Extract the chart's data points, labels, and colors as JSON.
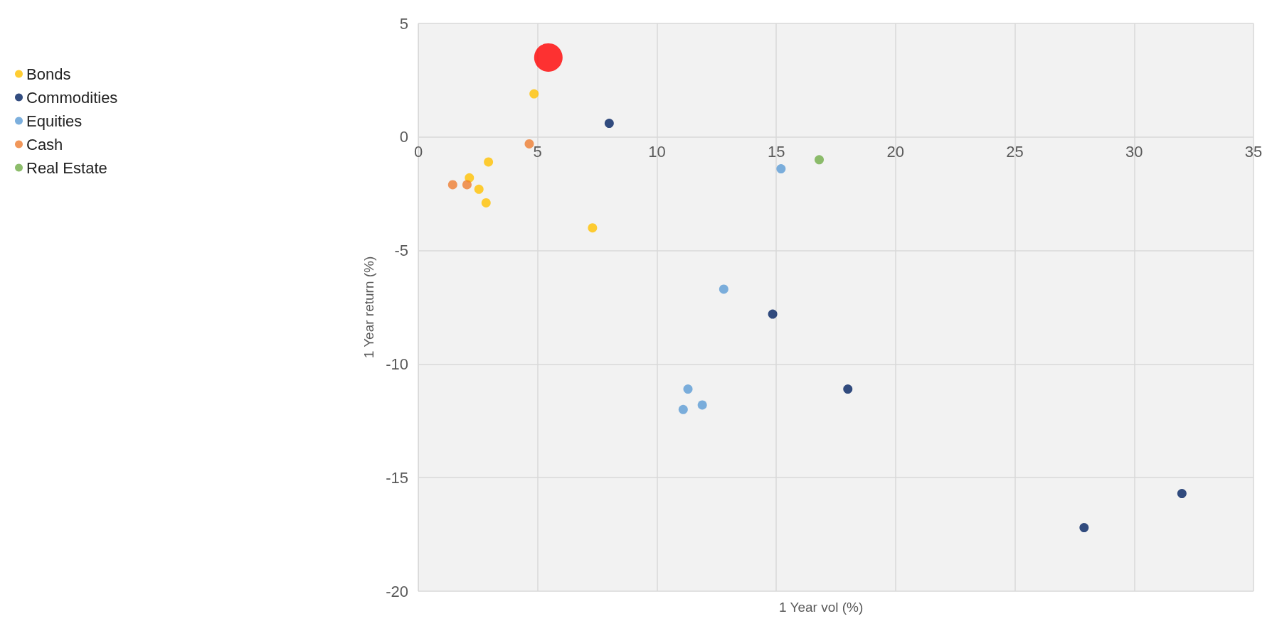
{
  "chart_data": {
    "type": "scatter",
    "xlabel": "1 Year vol (%)",
    "ylabel": "1 Year return (%)",
    "xlim": [
      0,
      35
    ],
    "xticks": [
      0,
      5,
      10,
      15,
      20,
      25,
      30,
      35
    ],
    "ylim": [
      -20,
      5
    ],
    "yticks": [
      -20,
      -15,
      -10,
      -5,
      0,
      5
    ],
    "grid": true,
    "legend": "left",
    "marker": "circle",
    "series": [
      {
        "type": "bubble",
        "color": "#ff0000",
        "x": [
          5.45
        ],
        "values": [
          3.5
        ],
        "sizes": [
          1
        ]
      },
      {
        "name": "Bonds",
        "color": "#ffc000",
        "x": [
          4.85,
          2.94,
          2.14,
          2.54,
          2.84,
          7.3
        ],
        "values": [
          1.9,
          -1.1,
          -1.8,
          -2.3,
          -2.9,
          -4.0
        ]
      },
      {
        "name": "Commodities",
        "color": "#002060",
        "x": [
          8.0,
          14.85,
          18.0,
          27.9,
          32.0
        ],
        "values": [
          0.6,
          -7.8,
          -11.1,
          -17.2,
          -15.7
        ]
      },
      {
        "name": "Equities",
        "color": "#5b9bd5",
        "x": [
          12.8,
          11.3,
          11.9,
          11.1,
          15.2
        ],
        "values": [
          -6.7,
          -11.1,
          -11.8,
          -12.0,
          -1.4
        ]
      },
      {
        "name": "Cash",
        "color": "#ed7d31",
        "x": [
          4.65,
          1.44,
          2.04
        ],
        "values": [
          -0.3,
          -2.1,
          -2.1
        ]
      },
      {
        "name": "Real Estate",
        "color": "#70ad47",
        "x": [
          16.8
        ],
        "values": [
          -1.0
        ]
      }
    ]
  }
}
